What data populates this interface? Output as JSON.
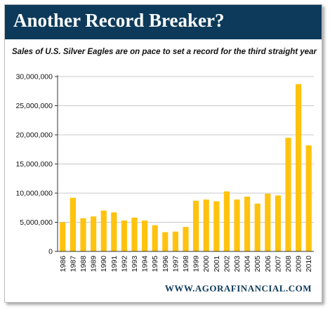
{
  "header": {
    "title": "Another Record Breaker?"
  },
  "subtitle": "Sales of U.S. Silver Eagles are on pace to set a record for the third straight year",
  "footer": {
    "source": "WWW.AGORAFINANCIAL.COM"
  },
  "colors": {
    "banner": "#0d3a5a",
    "bar": "#ffc20e",
    "grid": "#c8c8c8"
  },
  "chart_data": {
    "type": "bar",
    "categories": [
      "1986",
      "1987",
      "1988",
      "1989",
      "1990",
      "1991",
      "1992",
      "1993",
      "1994",
      "1995",
      "1996",
      "1997",
      "1998",
      "1999",
      "2000",
      "2001",
      "2002",
      "2003",
      "2004",
      "2005",
      "2006",
      "2007",
      "2008",
      "2009",
      "2010"
    ],
    "values": [
      5000000,
      9200000,
      5700000,
      6000000,
      7000000,
      6700000,
      5300000,
      5800000,
      5300000,
      4500000,
      3300000,
      3400000,
      4200000,
      8700000,
      8900000,
      8600000,
      10300000,
      8900000,
      9400000,
      8200000,
      9900000,
      9600000,
      19500000,
      28700000,
      18200000
    ],
    "y_ticks": [
      "0",
      "5,000,000",
      "10,000,000",
      "15,000,000",
      "20,000,000",
      "25,000,000",
      "30,000,000"
    ],
    "ylim": [
      0,
      30000000
    ],
    "grid": true,
    "legend": "none"
  }
}
